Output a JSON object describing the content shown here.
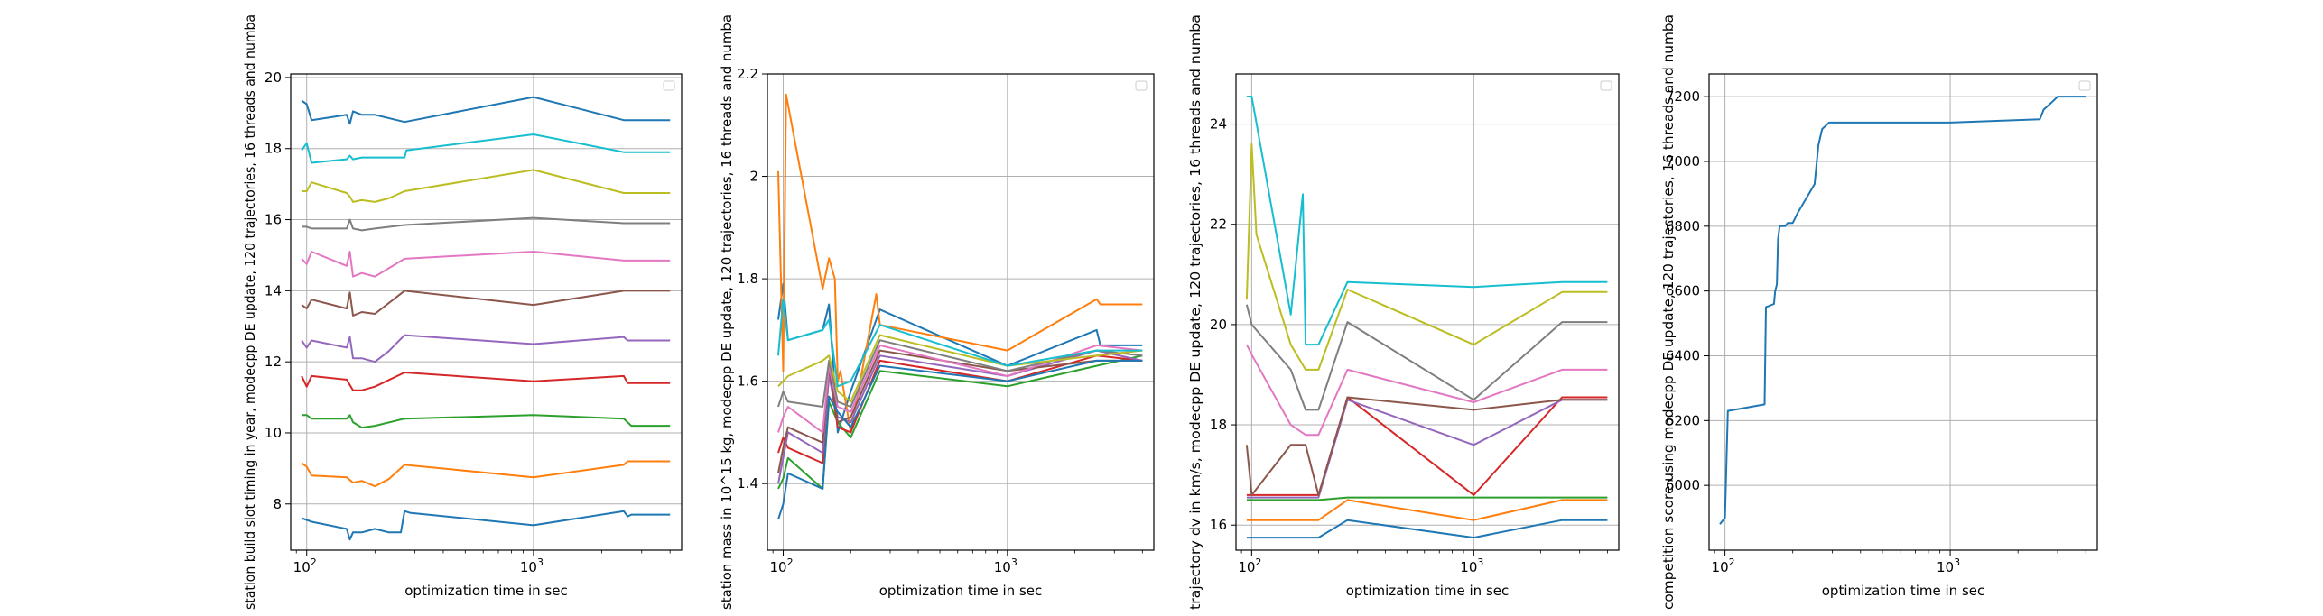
{
  "figure": {
    "background": "#ffffff",
    "grid_color": "#b0b0b0"
  },
  "palette": [
    "#1f77b4",
    "#ff7f0e",
    "#2ca02c",
    "#d62728",
    "#9467bd",
    "#8c564b",
    "#e377c2",
    "#7f7f7f",
    "#bcbd22",
    "#17becf"
  ],
  "chart_data": [
    {
      "type": "line",
      "xlabel": "optimization time in sec",
      "ylabel": "station build slot timing in year, modecpp DE update, 120 trajectories, 16 threads and numba",
      "xscale": "log",
      "xlim": [
        85,
        4500
      ],
      "ylim": [
        6.7,
        20.1
      ],
      "yticks": [
        8,
        10,
        12,
        14,
        16,
        18,
        20
      ],
      "xticks": [
        {
          "value": 100,
          "label": "10",
          "sup": "2"
        },
        {
          "value": 1000,
          "label": "10",
          "sup": "3"
        }
      ],
      "grid": true,
      "legend": "top-right (empty)",
      "series": [
        {
          "x": [
            95,
            100,
            105,
            150,
            155,
            160,
            175,
            200,
            230,
            260,
            270,
            285,
            1000,
            2500,
            2600,
            2700,
            4000
          ],
          "y": [
            7.6,
            7.55,
            7.5,
            7.3,
            7.0,
            7.2,
            7.2,
            7.3,
            7.2,
            7.2,
            7.8,
            7.75,
            7.4,
            7.8,
            7.65,
            7.7,
            7.7
          ]
        },
        {
          "x": [
            95,
            100,
            105,
            150,
            160,
            175,
            200,
            230,
            270,
            1000,
            2500,
            2600,
            4000
          ],
          "y": [
            9.15,
            9.05,
            8.8,
            8.75,
            8.6,
            8.65,
            8.5,
            8.7,
            9.1,
            8.75,
            9.1,
            9.2,
            9.2
          ]
        },
        {
          "x": [
            95,
            100,
            105,
            150,
            155,
            160,
            175,
            200,
            270,
            1000,
            2500,
            2700,
            4000
          ],
          "y": [
            10.5,
            10.5,
            10.4,
            10.4,
            10.5,
            10.3,
            10.15,
            10.2,
            10.4,
            10.5,
            10.4,
            10.2,
            10.2
          ]
        },
        {
          "x": [
            95,
            100,
            105,
            150,
            160,
            175,
            200,
            270,
            1000,
            2500,
            2600,
            4000
          ],
          "y": [
            11.6,
            11.3,
            11.6,
            11.5,
            11.2,
            11.2,
            11.3,
            11.7,
            11.45,
            11.6,
            11.4,
            11.4
          ]
        },
        {
          "x": [
            95,
            100,
            105,
            150,
            155,
            160,
            175,
            200,
            230,
            270,
            1000,
            2500,
            2600,
            4000
          ],
          "y": [
            12.6,
            12.4,
            12.6,
            12.4,
            12.7,
            12.1,
            12.1,
            12.0,
            12.3,
            12.75,
            12.5,
            12.7,
            12.6,
            12.6
          ]
        },
        {
          "x": [
            95,
            100,
            105,
            150,
            155,
            160,
            175,
            200,
            270,
            1000,
            2500,
            4000
          ],
          "y": [
            13.6,
            13.5,
            13.75,
            13.5,
            13.95,
            13.3,
            13.4,
            13.35,
            14.0,
            13.6,
            14.0,
            14.0
          ]
        },
        {
          "x": [
            95,
            100,
            105,
            150,
            155,
            160,
            175,
            200,
            270,
            1000,
            2500,
            4000
          ],
          "y": [
            14.9,
            14.75,
            15.1,
            14.7,
            15.1,
            14.4,
            14.5,
            14.4,
            14.9,
            15.1,
            14.85,
            14.85
          ]
        },
        {
          "x": [
            95,
            100,
            105,
            150,
            155,
            160,
            175,
            200,
            270,
            1000,
            2500,
            4000
          ],
          "y": [
            15.8,
            15.8,
            15.75,
            15.75,
            16.0,
            15.75,
            15.7,
            15.75,
            15.85,
            16.05,
            15.9,
            15.9
          ]
        },
        {
          "x": [
            95,
            100,
            105,
            150,
            155,
            160,
            175,
            200,
            230,
            270,
            1000,
            2500,
            4000
          ],
          "y": [
            16.8,
            16.8,
            17.05,
            16.75,
            16.65,
            16.5,
            16.55,
            16.5,
            16.6,
            16.8,
            17.4,
            16.75,
            16.75
          ]
        },
        {
          "x": [
            95,
            100,
            105,
            150,
            155,
            160,
            175,
            200,
            270,
            275,
            1000,
            2500,
            4000
          ],
          "y": [
            17.95,
            18.15,
            17.6,
            17.7,
            17.8,
            17.7,
            17.75,
            17.75,
            17.75,
            17.95,
            18.4,
            17.9,
            17.9
          ]
        },
        {
          "x": [
            95,
            100,
            105,
            150,
            155,
            160,
            175,
            200,
            270,
            1000,
            2500,
            4000
          ],
          "y": [
            19.35,
            19.25,
            18.8,
            18.95,
            18.7,
            19.05,
            18.95,
            18.95,
            18.75,
            19.45,
            18.8,
            18.8
          ]
        }
      ]
    },
    {
      "type": "line",
      "xlabel": "optimization time in sec",
      "ylabel": "station mass in 10^15 kg, modecpp DE update, 120 trajectories, 16 threads and numba",
      "xscale": "log",
      "xlim": [
        85,
        4500
      ],
      "ylim": [
        1.27,
        2.2
      ],
      "yticks": [
        1.4,
        1.6,
        1.8,
        2.0,
        2.2
      ],
      "xticks": [
        {
          "value": 100,
          "label": "10",
          "sup": "2"
        },
        {
          "value": 1000,
          "label": "10",
          "sup": "3"
        }
      ],
      "grid": true,
      "legend": "top-right (empty)",
      "series": [
        {
          "x": [
            95,
            100,
            105,
            150,
            160,
            175,
            200,
            270,
            1000,
            2500,
            2600,
            4000
          ],
          "y": [
            1.72,
            1.79,
            1.68,
            1.7,
            1.75,
            1.5,
            1.58,
            1.74,
            1.63,
            1.7,
            1.67,
            1.67
          ]
        },
        {
          "x": [
            95,
            100,
            103,
            150,
            160,
            170,
            175,
            180,
            200,
            260,
            270,
            1000,
            2500,
            2600,
            4000
          ],
          "y": [
            2.01,
            1.62,
            2.16,
            1.78,
            1.84,
            1.8,
            1.6,
            1.62,
            1.5,
            1.77,
            1.71,
            1.66,
            1.76,
            1.75,
            1.75
          ]
        },
        {
          "x": [
            95,
            100,
            105,
            150,
            160,
            175,
            200,
            270,
            1000,
            2500,
            4000
          ],
          "y": [
            1.39,
            1.41,
            1.45,
            1.39,
            1.56,
            1.52,
            1.49,
            1.62,
            1.59,
            1.63,
            1.65
          ]
        },
        {
          "x": [
            95,
            100,
            105,
            150,
            160,
            175,
            200,
            270,
            1000,
            2500,
            4000
          ],
          "y": [
            1.46,
            1.49,
            1.47,
            1.44,
            1.62,
            1.51,
            1.5,
            1.64,
            1.6,
            1.65,
            1.64
          ]
        },
        {
          "x": [
            95,
            100,
            105,
            150,
            160,
            175,
            200,
            270,
            1000,
            2500,
            4000
          ],
          "y": [
            1.4,
            1.45,
            1.5,
            1.46,
            1.61,
            1.53,
            1.52,
            1.65,
            1.61,
            1.66,
            1.64
          ]
        },
        {
          "x": [
            95,
            100,
            105,
            150,
            160,
            175,
            200,
            270,
            1000,
            2500,
            4000
          ],
          "y": [
            1.42,
            1.47,
            1.51,
            1.48,
            1.63,
            1.52,
            1.53,
            1.66,
            1.62,
            1.64,
            1.64
          ]
        },
        {
          "x": [
            95,
            100,
            105,
            150,
            160,
            175,
            200,
            270,
            1000,
            2500,
            4000
          ],
          "y": [
            1.5,
            1.53,
            1.55,
            1.5,
            1.63,
            1.55,
            1.54,
            1.67,
            1.61,
            1.67,
            1.66
          ]
        },
        {
          "x": [
            95,
            100,
            105,
            150,
            160,
            175,
            200,
            270,
            1000,
            2500,
            4000
          ],
          "y": [
            1.55,
            1.58,
            1.56,
            1.55,
            1.64,
            1.56,
            1.55,
            1.68,
            1.62,
            1.66,
            1.65
          ]
        },
        {
          "x": [
            95,
            100,
            105,
            150,
            160,
            175,
            200,
            270,
            1000,
            2500,
            4000
          ],
          "y": [
            1.59,
            1.6,
            1.61,
            1.64,
            1.65,
            1.58,
            1.56,
            1.69,
            1.63,
            1.65,
            1.66
          ]
        },
        {
          "x": [
            95,
            100,
            105,
            150,
            160,
            175,
            200,
            270,
            1000,
            2500,
            4000
          ],
          "y": [
            1.65,
            1.76,
            1.68,
            1.7,
            1.72,
            1.59,
            1.6,
            1.71,
            1.63,
            1.66,
            1.66
          ]
        },
        {
          "x": [
            95,
            100,
            105,
            150,
            160,
            175,
            200,
            270,
            1000,
            2500,
            4000
          ],
          "y": [
            1.33,
            1.36,
            1.42,
            1.39,
            1.57,
            1.54,
            1.51,
            1.63,
            1.6,
            1.64,
            1.64
          ]
        }
      ]
    },
    {
      "type": "line",
      "xlabel": "optimization time in sec",
      "ylabel": "trajectory dv in km/s, modecpp DE update, 120 trajectories, 16 threads and numba",
      "xscale": "log",
      "xlim": [
        85,
        4500
      ],
      "ylim": [
        15.5,
        25.0
      ],
      "yticks": [
        16,
        18,
        20,
        22,
        24
      ],
      "xticks": [
        {
          "value": 100,
          "label": "10",
          "sup": "2"
        },
        {
          "value": 1000,
          "label": "10",
          "sup": "3"
        }
      ],
      "grid": true,
      "legend": "top-right (empty)",
      "series": [
        {
          "x": [
            95,
            100,
            150,
            160,
            175,
            200,
            270,
            1000,
            2500,
            4000
          ],
          "y": [
            15.75,
            15.75,
            15.75,
            15.75,
            15.75,
            15.75,
            16.1,
            15.75,
            16.1,
            16.1
          ]
        },
        {
          "x": [
            95,
            100,
            150,
            160,
            175,
            200,
            270,
            1000,
            2500,
            4000
          ],
          "y": [
            16.1,
            16.1,
            16.1,
            16.1,
            16.1,
            16.1,
            16.5,
            16.1,
            16.5,
            16.5
          ]
        },
        {
          "x": [
            95,
            100,
            150,
            175,
            200,
            270,
            1000,
            2500,
            4000
          ],
          "y": [
            16.5,
            16.5,
            16.5,
            16.5,
            16.5,
            16.55,
            16.55,
            16.55,
            16.55
          ]
        },
        {
          "x": [
            95,
            100,
            150,
            175,
            200,
            270,
            1000,
            2500,
            4000
          ],
          "y": [
            16.6,
            16.6,
            16.6,
            16.6,
            16.6,
            18.55,
            16.6,
            18.55,
            18.55
          ]
        },
        {
          "x": [
            95,
            100,
            150,
            175,
            200,
            270,
            1000,
            2500,
            4000
          ],
          "y": [
            16.55,
            16.55,
            16.55,
            16.55,
            16.55,
            18.5,
            17.6,
            18.5,
            18.5
          ]
        },
        {
          "x": [
            95,
            100,
            150,
            175,
            200,
            270,
            1000,
            2500,
            4000
          ],
          "y": [
            17.6,
            16.6,
            17.6,
            17.6,
            16.6,
            18.55,
            18.3,
            18.5,
            18.5
          ]
        },
        {
          "x": [
            95,
            100,
            150,
            175,
            200,
            270,
            1000,
            2500,
            4000
          ],
          "y": [
            19.6,
            19.4,
            18.0,
            17.8,
            17.8,
            19.1,
            18.45,
            19.1,
            19.1
          ]
        },
        {
          "x": [
            95,
            100,
            150,
            175,
            200,
            270,
            1000,
            2500,
            4000
          ],
          "y": [
            20.4,
            20.0,
            19.1,
            18.3,
            18.3,
            20.05,
            18.5,
            20.05,
            20.05
          ]
        },
        {
          "x": [
            95,
            100,
            105,
            150,
            175,
            200,
            270,
            1000,
            2500,
            4000
          ],
          "y": [
            20.5,
            23.6,
            21.8,
            19.6,
            19.1,
            19.1,
            20.7,
            19.6,
            20.65,
            20.65
          ]
        },
        {
          "x": [
            95,
            100,
            150,
            170,
            175,
            180,
            200,
            270,
            1000,
            2500,
            4000
          ],
          "y": [
            24.55,
            24.55,
            20.2,
            22.6,
            19.6,
            19.6,
            19.6,
            20.85,
            20.75,
            20.85,
            20.85
          ]
        }
      ]
    },
    {
      "type": "line",
      "xlabel": "optimization time in sec",
      "ylabel": "competition score using modecpp DE update, 120 trajectories, 16 threads and numba",
      "xscale": "log",
      "xlim": [
        85,
        4500
      ],
      "ylim": [
        5800,
        7270
      ],
      "yticks": [
        6000,
        6200,
        6400,
        6600,
        6800,
        7000,
        7200
      ],
      "xticks": [
        {
          "value": 100,
          "label": "10",
          "sup": "2"
        },
        {
          "value": 1000,
          "label": "10",
          "sup": "3"
        }
      ],
      "grid": true,
      "legend": "top-right (empty)",
      "series": [
        {
          "x": [
            95,
            100,
            103,
            150,
            152,
            165,
            167,
            170,
            172,
            175,
            185,
            190,
            200,
            210,
            250,
            260,
            270,
            290,
            1000,
            2500,
            2600,
            2800,
            3000,
            4000
          ],
          "y": [
            5880,
            5900,
            6230,
            6250,
            6550,
            6560,
            6600,
            6620,
            6760,
            6800,
            6800,
            6810,
            6810,
            6840,
            6930,
            7050,
            7100,
            7120,
            7120,
            7130,
            7160,
            7180,
            7200,
            7200
          ]
        }
      ]
    }
  ]
}
